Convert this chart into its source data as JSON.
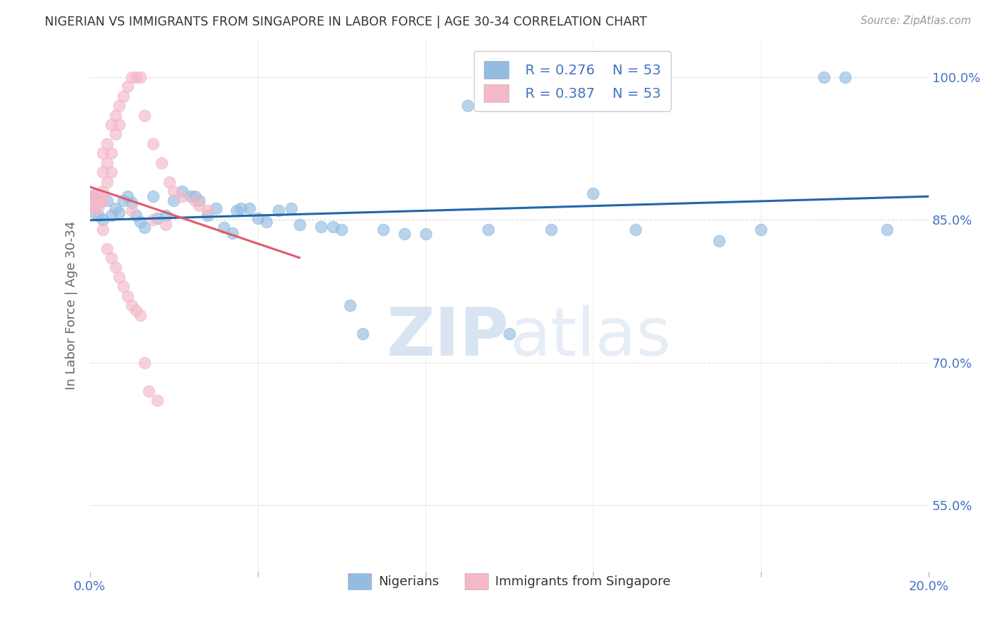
{
  "title": "NIGERIAN VS IMMIGRANTS FROM SINGAPORE IN LABOR FORCE | AGE 30-34 CORRELATION CHART",
  "source": "Source: ZipAtlas.com",
  "ylabel": "In Labor Force | Age 30-34",
  "yticks": [
    0.55,
    0.7,
    0.85,
    1.0
  ],
  "ytick_labels": [
    "55.0%",
    "70.0%",
    "85.0%",
    "100.0%"
  ],
  "xmin": 0.0,
  "xmax": 0.2,
  "ymin": 0.48,
  "ymax": 1.04,
  "legend_blue_r": "R = 0.276",
  "legend_blue_n": "N = 53",
  "legend_pink_r": "R = 0.387",
  "legend_pink_n": "N = 53",
  "legend_blue_label": "Nigerians",
  "legend_pink_label": "Immigrants from Singapore",
  "watermark_zip": "ZIP",
  "watermark_atlas": "atlas",
  "blue_x": [
    0.001,
    0.001,
    0.002,
    0.003,
    0.004,
    0.005,
    0.006,
    0.007,
    0.008,
    0.009,
    0.01,
    0.011,
    0.012,
    0.013,
    0.015,
    0.016,
    0.018,
    0.02,
    0.022,
    0.024,
    0.026,
    0.028,
    0.03,
    0.032,
    0.034,
    0.036,
    0.038,
    0.04,
    0.042,
    0.045,
    0.048,
    0.05,
    0.055,
    0.058,
    0.062,
    0.065,
    0.07,
    0.075,
    0.08,
    0.09,
    0.095,
    0.1,
    0.11,
    0.12,
    0.13,
    0.15,
    0.16,
    0.175,
    0.18,
    0.19,
    0.06,
    0.035,
    0.025
  ],
  "blue_y": [
    0.876,
    0.858,
    0.855,
    0.85,
    0.87,
    0.855,
    0.862,
    0.858,
    0.87,
    0.875,
    0.868,
    0.855,
    0.848,
    0.842,
    0.875,
    0.852,
    0.855,
    0.87,
    0.88,
    0.875,
    0.87,
    0.855,
    0.862,
    0.842,
    0.836,
    0.862,
    0.862,
    0.852,
    0.848,
    0.86,
    0.862,
    0.845,
    0.843,
    0.843,
    0.76,
    0.73,
    0.84,
    0.835,
    0.835,
    0.97,
    0.84,
    0.73,
    0.84,
    0.878,
    0.84,
    0.828,
    0.84,
    1.0,
    1.0,
    0.84,
    0.84,
    0.86,
    0.875
  ],
  "pink_x": [
    0.001,
    0.001,
    0.001,
    0.001,
    0.001,
    0.002,
    0.002,
    0.002,
    0.002,
    0.003,
    0.003,
    0.003,
    0.003,
    0.004,
    0.004,
    0.004,
    0.005,
    0.005,
    0.005,
    0.006,
    0.006,
    0.007,
    0.007,
    0.008,
    0.009,
    0.01,
    0.011,
    0.012,
    0.013,
    0.015,
    0.017,
    0.019,
    0.02,
    0.022,
    0.025,
    0.026,
    0.028,
    0.01,
    0.015,
    0.018,
    0.003,
    0.004,
    0.005,
    0.006,
    0.007,
    0.008,
    0.009,
    0.01,
    0.011,
    0.012,
    0.013,
    0.014,
    0.016
  ],
  "pink_y": [
    0.876,
    0.872,
    0.868,
    0.864,
    0.86,
    0.876,
    0.872,
    0.868,
    0.864,
    0.92,
    0.9,
    0.88,
    0.87,
    0.93,
    0.91,
    0.89,
    0.95,
    0.92,
    0.9,
    0.96,
    0.94,
    0.97,
    0.95,
    0.98,
    0.99,
    1.0,
    1.0,
    1.0,
    0.96,
    0.93,
    0.91,
    0.89,
    0.88,
    0.875,
    0.87,
    0.865,
    0.86,
    0.86,
    0.85,
    0.845,
    0.84,
    0.82,
    0.81,
    0.8,
    0.79,
    0.78,
    0.77,
    0.76,
    0.755,
    0.75,
    0.7,
    0.67,
    0.66
  ],
  "blue_color": "#92bce0",
  "pink_color": "#f4b8c8",
  "blue_line_color": "#2166ac",
  "pink_line_color": "#e05a6a",
  "grid_color": "#dddddd",
  "title_color": "#333333",
  "axis_color": "#4472c4",
  "background_color": "#ffffff"
}
